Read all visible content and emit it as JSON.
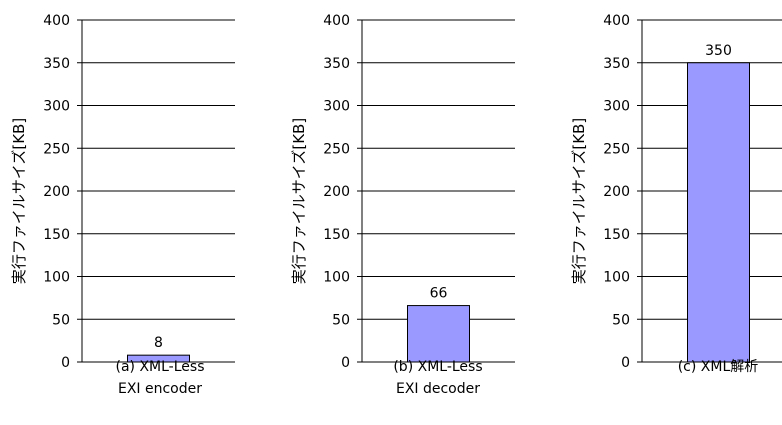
{
  "chart_data": [
    {
      "type": "bar",
      "categories": [
        ""
      ],
      "values": [
        8
      ],
      "data_labels": [
        "8"
      ],
      "caption": [
        "(a) XML-Less",
        "EXI encoder"
      ],
      "ylabel": "実行ファイルサイズ[KB]",
      "ylim": [
        0,
        400
      ],
      "yticks": [
        0,
        50,
        100,
        150,
        200,
        250,
        300,
        350,
        400
      ],
      "grid": true,
      "bar_color": "#9999FF"
    },
    {
      "type": "bar",
      "categories": [
        ""
      ],
      "values": [
        66
      ],
      "data_labels": [
        "66"
      ],
      "caption": [
        "(b) XML-Less",
        "EXI decoder"
      ],
      "ylabel": "実行ファイルサイズ[KB]",
      "ylim": [
        0,
        400
      ],
      "yticks": [
        0,
        50,
        100,
        150,
        200,
        250,
        300,
        350,
        400
      ],
      "grid": true,
      "bar_color": "#9999FF"
    },
    {
      "type": "bar",
      "categories": [
        ""
      ],
      "values": [
        350
      ],
      "data_labels": [
        "350"
      ],
      "caption": [
        "(c) XML解析"
      ],
      "ylabel": "実行ファイルサイズ[KB]",
      "ylim": [
        0,
        400
      ],
      "yticks": [
        0,
        50,
        100,
        150,
        200,
        250,
        300,
        350,
        400
      ],
      "grid": true,
      "bar_color": "#9999FF"
    }
  ]
}
